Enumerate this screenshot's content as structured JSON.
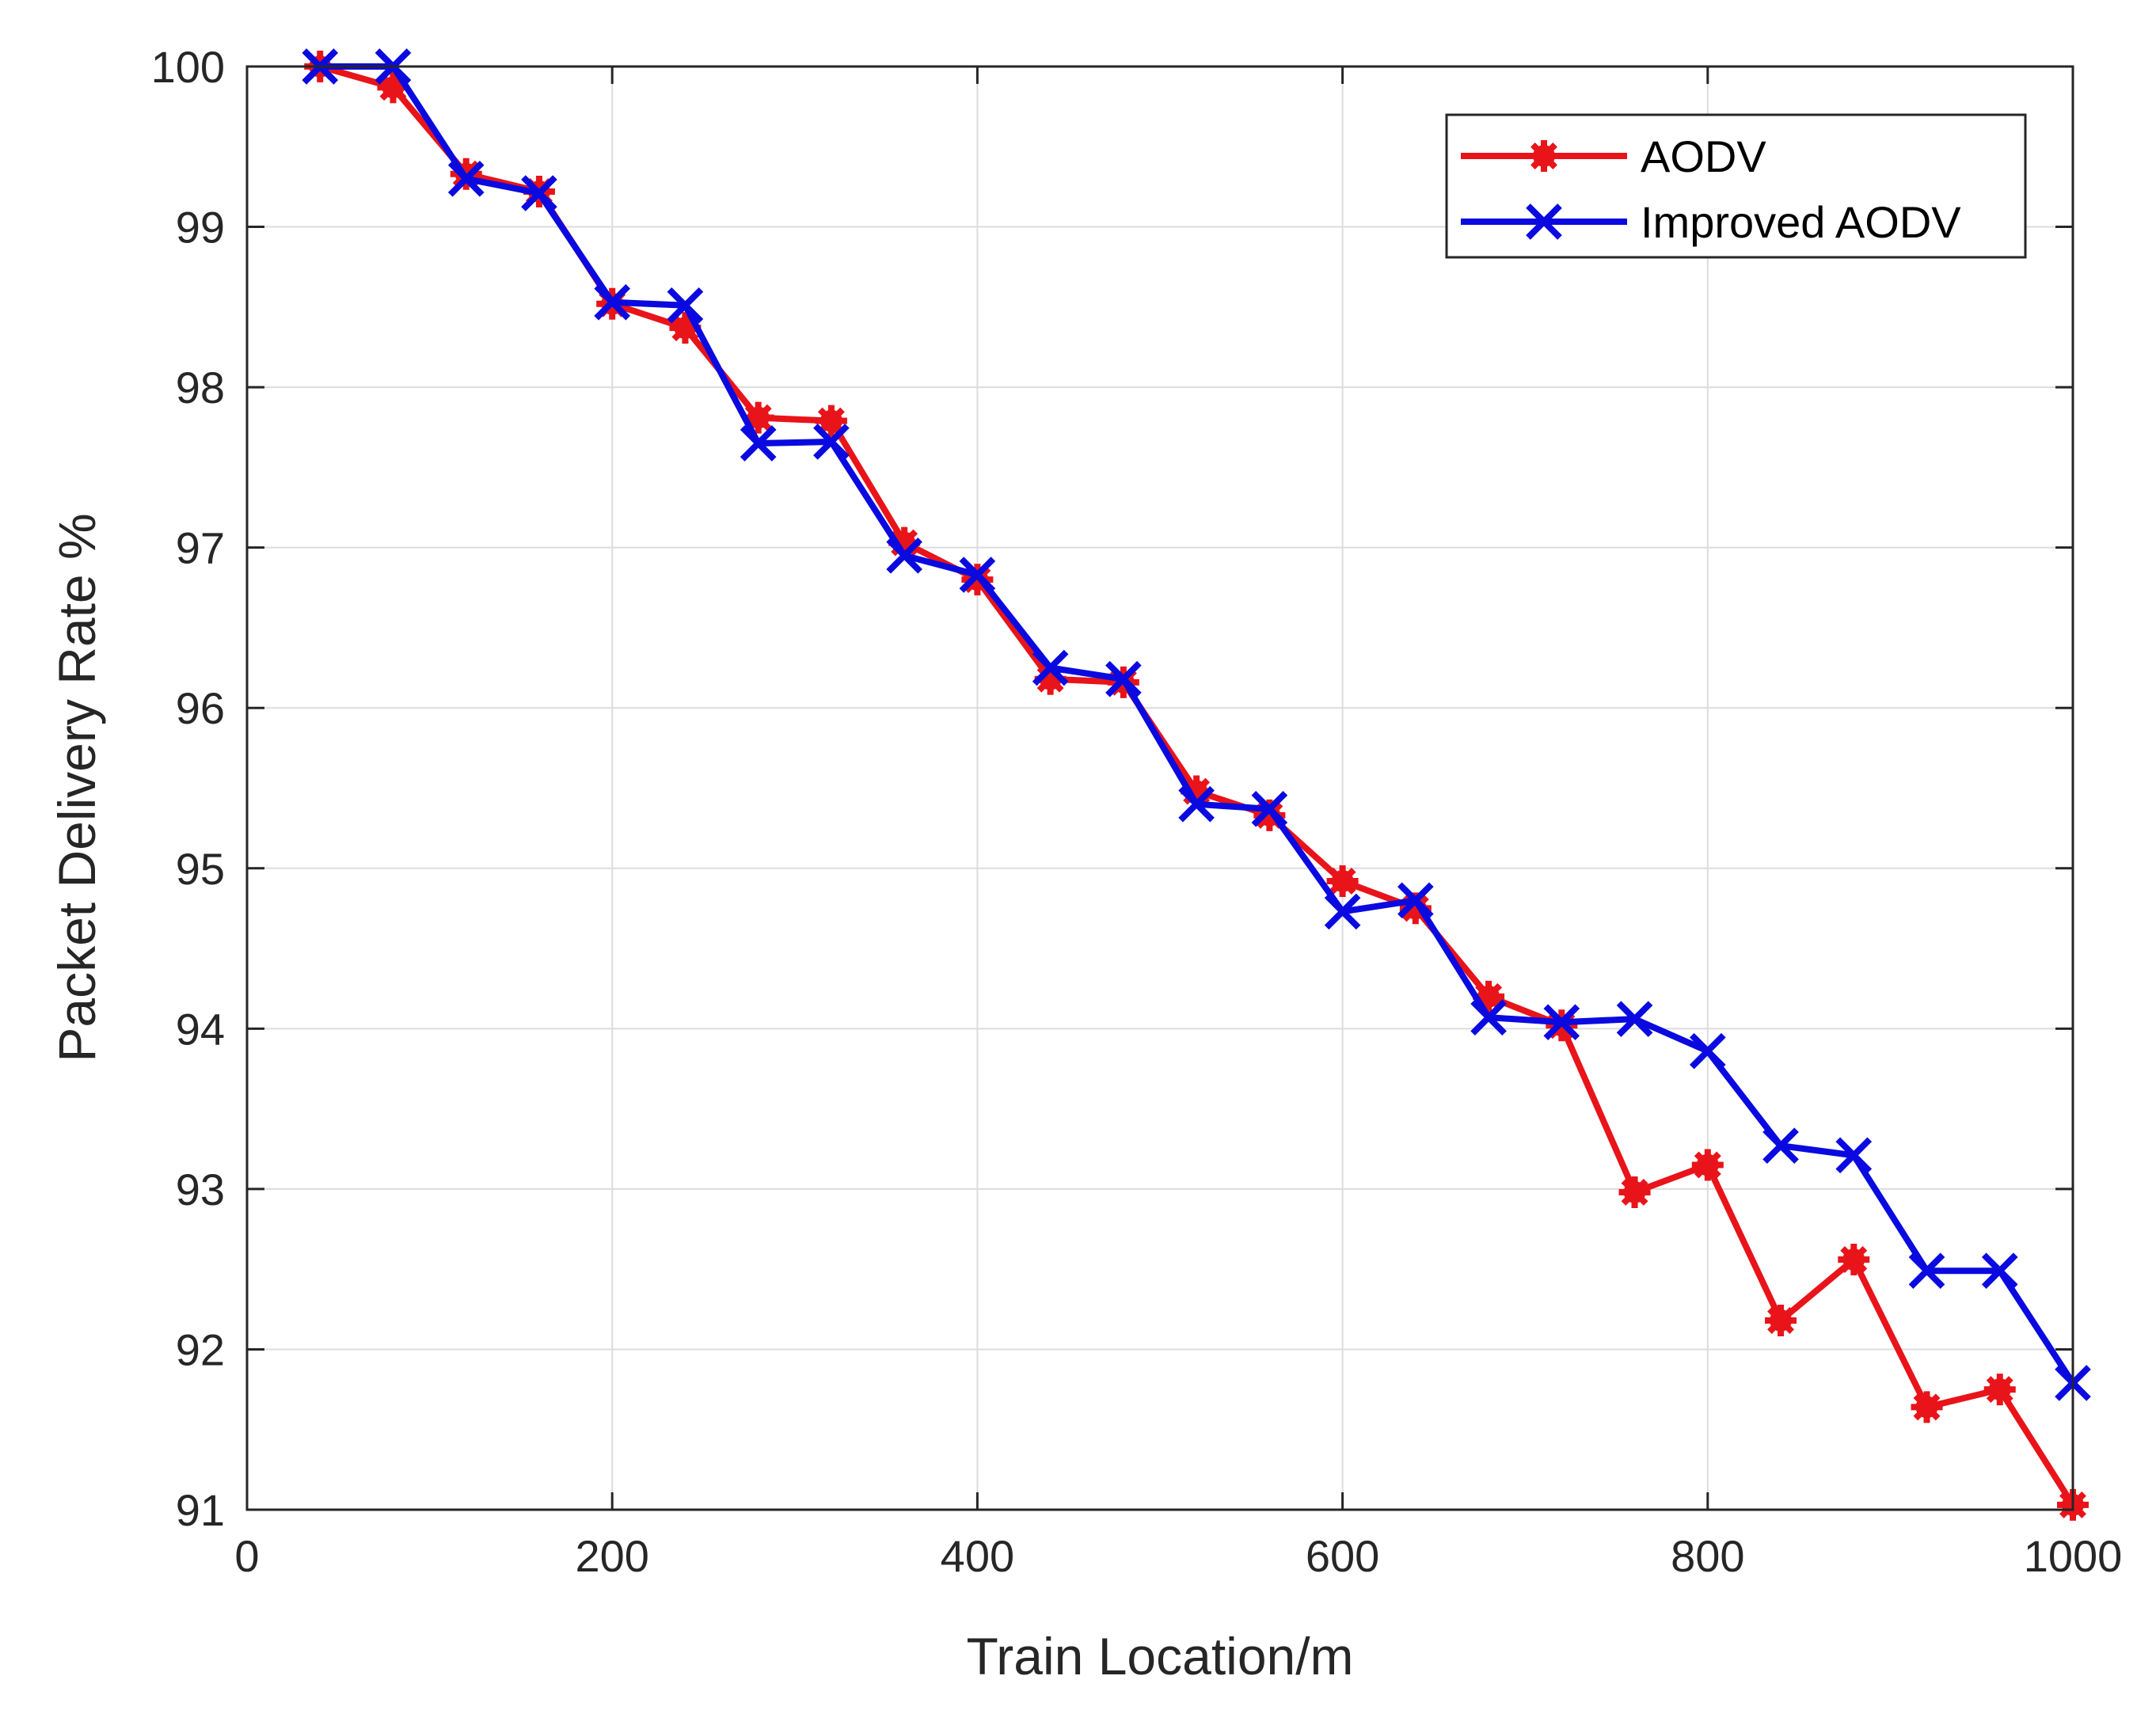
{
  "chart_data": {
    "type": "line",
    "title": "",
    "xlabel": "Train Location/m",
    "ylabel": "Packet Delivery Rate %",
    "xlim": [
      0,
      1000
    ],
    "ylim": [
      91,
      100
    ],
    "xticks": [
      0,
      200,
      400,
      600,
      800,
      1000
    ],
    "yticks": [
      91,
      92,
      93,
      94,
      95,
      96,
      97,
      98,
      99,
      100
    ],
    "grid": true,
    "legend_position": "top-right",
    "x": [
      40,
      80,
      120,
      160,
      200,
      240,
      280,
      320,
      360,
      400,
      440,
      480,
      520,
      560,
      600,
      640,
      680,
      720,
      760,
      800,
      840,
      880,
      920,
      960,
      1000
    ],
    "series": [
      {
        "name": "AODV",
        "color": "#e8141a",
        "marker": "asterisk",
        "values": [
          100,
          99.87,
          99.33,
          99.22,
          98.52,
          98.37,
          97.81,
          97.79,
          97.03,
          96.8,
          96.18,
          96.16,
          95.48,
          95.33,
          94.92,
          94.75,
          94.2,
          94.02,
          92.98,
          93.15,
          92.18,
          92.56,
          91.64,
          91.75,
          91.03
        ]
      },
      {
        "name": "Improved AODV",
        "color": "#0a0ae0",
        "marker": "x",
        "values": [
          100,
          100,
          99.3,
          99.21,
          98.53,
          98.51,
          97.65,
          97.66,
          96.95,
          96.83,
          96.25,
          96.18,
          95.4,
          95.37,
          94.73,
          94.8,
          94.07,
          94.04,
          94.06,
          93.86,
          93.27,
          93.21,
          92.49,
          92.49,
          91.79
        ]
      }
    ]
  }
}
